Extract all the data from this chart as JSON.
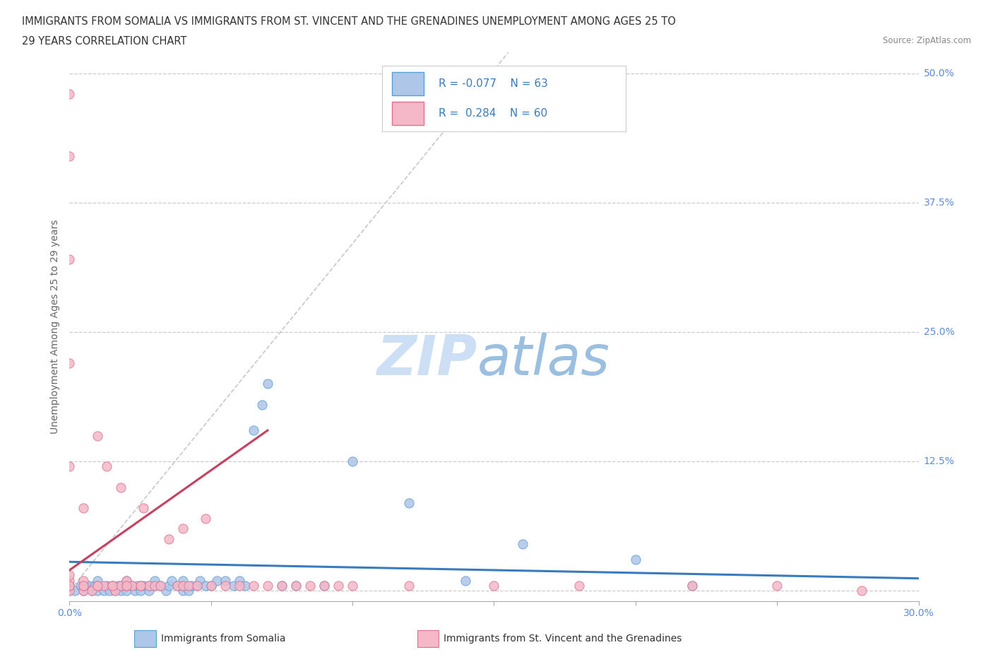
{
  "title_line1": "IMMIGRANTS FROM SOMALIA VS IMMIGRANTS FROM ST. VINCENT AND THE GRENADINES UNEMPLOYMENT AMONG AGES 25 TO",
  "title_line2": "29 YEARS CORRELATION CHART",
  "source": "Source: ZipAtlas.com",
  "ylabel": "Unemployment Among Ages 25 to 29 years",
  "xlim": [
    0.0,
    0.3
  ],
  "ylim": [
    -0.01,
    0.52
  ],
  "ytick_vals": [
    0.0,
    0.125,
    0.25,
    0.375,
    0.5
  ],
  "yticklabels": [
    "",
    "12.5%",
    "25.0%",
    "37.5%",
    "50.0%"
  ],
  "xtick_vals": [
    0.0,
    0.05,
    0.1,
    0.15,
    0.2,
    0.25,
    0.3
  ],
  "xticklabels": [
    "0.0%",
    "",
    "",
    "",
    "",
    "",
    "30.0%"
  ],
  "grid_color": "#cccccc",
  "somalia_fill": "#aec6e8",
  "somalia_edge": "#5a9fd4",
  "svg_fill": "#f4b8c8",
  "svg_edge": "#e07090",
  "blue_line_color": "#3a7bbf",
  "red_line_color": "#c84060",
  "diag_line_color": "#cccccc",
  "tick_color": "#5b8dd9",
  "ylabel_color": "#666666",
  "legend_border": "#cccccc",
  "legend_text_color": "#3a7bbf",
  "watermark_zip_color": "#ccdff5",
  "watermark_atlas_color": "#9bbfe0",
  "somalia_scatter_x": [
    0.0,
    0.0,
    0.002,
    0.004,
    0.005,
    0.006,
    0.007,
    0.008,
    0.009,
    0.01,
    0.01,
    0.01,
    0.012,
    0.013,
    0.014,
    0.015,
    0.016,
    0.017,
    0.018,
    0.018,
    0.02,
    0.02,
    0.02,
    0.022,
    0.023,
    0.024,
    0.025,
    0.026,
    0.028,
    0.028,
    0.03,
    0.03,
    0.032,
    0.034,
    0.035,
    0.036,
    0.038,
    0.04,
    0.04,
    0.04,
    0.042,
    0.043,
    0.045,
    0.046,
    0.048,
    0.05,
    0.052,
    0.055,
    0.058,
    0.06,
    0.062,
    0.065,
    0.068,
    0.07,
    0.075,
    0.08,
    0.09,
    0.1,
    0.12,
    0.14,
    0.16,
    0.2,
    0.22
  ],
  "somalia_scatter_y": [
    0.0,
    0.005,
    0.0,
    0.005,
    0.0,
    0.005,
    0.005,
    0.0,
    0.005,
    0.0,
    0.005,
    0.01,
    0.0,
    0.005,
    0.0,
    0.005,
    0.0,
    0.005,
    0.0,
    0.005,
    0.0,
    0.005,
    0.01,
    0.005,
    0.0,
    0.005,
    0.0,
    0.005,
    0.0,
    0.005,
    0.005,
    0.01,
    0.005,
    0.0,
    0.005,
    0.01,
    0.005,
    0.0,
    0.005,
    0.01,
    0.0,
    0.005,
    0.005,
    0.01,
    0.005,
    0.005,
    0.01,
    0.01,
    0.005,
    0.01,
    0.005,
    0.155,
    0.18,
    0.2,
    0.005,
    0.005,
    0.005,
    0.125,
    0.085,
    0.01,
    0.045,
    0.03,
    0.005
  ],
  "svg_scatter_x": [
    0.0,
    0.0,
    0.0,
    0.0,
    0.0,
    0.0,
    0.005,
    0.005,
    0.005,
    0.005,
    0.008,
    0.01,
    0.01,
    0.012,
    0.013,
    0.015,
    0.016,
    0.018,
    0.018,
    0.02,
    0.02,
    0.022,
    0.025,
    0.026,
    0.028,
    0.03,
    0.032,
    0.035,
    0.038,
    0.04,
    0.04,
    0.042,
    0.045,
    0.048,
    0.05,
    0.055,
    0.06,
    0.065,
    0.07,
    0.075,
    0.08,
    0.085,
    0.09,
    0.095,
    0.1,
    0.12,
    0.15,
    0.18,
    0.22,
    0.25,
    0.28,
    0.0,
    0.0,
    0.0,
    0.0,
    0.005,
    0.01,
    0.015,
    0.02,
    0.025
  ],
  "svg_scatter_y": [
    0.0,
    0.005,
    0.01,
    0.015,
    0.48,
    0.42,
    0.0,
    0.005,
    0.01,
    0.08,
    0.0,
    0.005,
    0.15,
    0.005,
    0.12,
    0.005,
    0.0,
    0.005,
    0.1,
    0.005,
    0.01,
    0.005,
    0.005,
    0.08,
    0.005,
    0.005,
    0.005,
    0.05,
    0.005,
    0.005,
    0.06,
    0.005,
    0.005,
    0.07,
    0.005,
    0.005,
    0.005,
    0.005,
    0.005,
    0.005,
    0.005,
    0.005,
    0.005,
    0.005,
    0.005,
    0.005,
    0.005,
    0.005,
    0.005,
    0.005,
    0.0,
    0.32,
    0.22,
    0.12,
    0.005,
    0.005,
    0.005,
    0.005,
    0.005,
    0.005
  ],
  "blue_trend_x": [
    0.0,
    0.3
  ],
  "blue_trend_y": [
    0.028,
    0.012
  ],
  "red_trend_x": [
    0.0,
    0.07
  ],
  "red_trend_y": [
    0.02,
    0.155
  ]
}
